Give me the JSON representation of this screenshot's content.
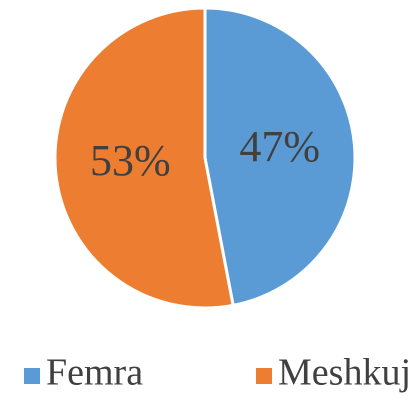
{
  "chart_data": {
    "type": "pie",
    "categories": [
      "Femra",
      "Meshkuj"
    ],
    "values": [
      47,
      53
    ],
    "value_labels": [
      "47%",
      "53%"
    ],
    "colors": [
      "#5b9bd5",
      "#ed7d31"
    ],
    "legend": "bottom"
  }
}
